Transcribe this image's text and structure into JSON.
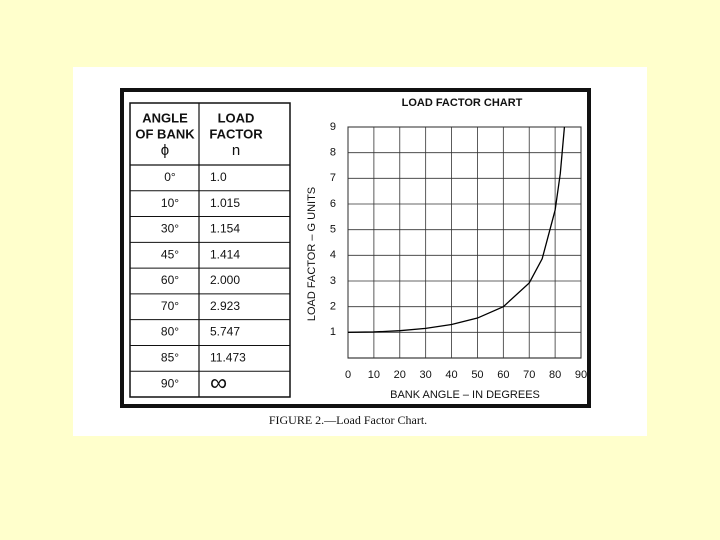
{
  "table": {
    "header": [
      [
        "ANGLE",
        "OF BANK",
        "ϕ"
      ],
      [
        "LOAD",
        "FACTOR",
        "n"
      ]
    ],
    "rows": [
      [
        "0°",
        "1.0"
      ],
      [
        "10°",
        "1.015"
      ],
      [
        "30°",
        "1.154"
      ],
      [
        "45°",
        "1.414"
      ],
      [
        "60°",
        "2.000"
      ],
      [
        "70°",
        "2.923"
      ],
      [
        "80°",
        "5.747"
      ],
      [
        "85°",
        "11.473"
      ],
      [
        "90°",
        "∞"
      ]
    ]
  },
  "chart_data": {
    "type": "line",
    "title": "LOAD FACTOR CHART",
    "xlabel": "BANK ANGLE – IN DEGREES",
    "ylabel": "LOAD FACTOR – G UNITS",
    "x": [
      0,
      10,
      20,
      30,
      40,
      50,
      60,
      70,
      75,
      80,
      82,
      83.6
    ],
    "values": [
      1,
      1.015,
      1.064,
      1.155,
      1.305,
      1.556,
      2,
      2.924,
      3.864,
      5.759,
      7.185,
      9
    ],
    "color": "#000000",
    "xlim": [
      0,
      90
    ],
    "xticks": [
      0,
      10,
      20,
      30,
      40,
      50,
      60,
      70,
      80,
      90
    ],
    "ylim": [
      0,
      9
    ],
    "yticks": [
      1,
      2,
      3,
      4,
      5,
      6,
      7,
      8,
      9
    ],
    "grid": true
  },
  "caption": "FIGURE 2.—Load Factor Chart."
}
